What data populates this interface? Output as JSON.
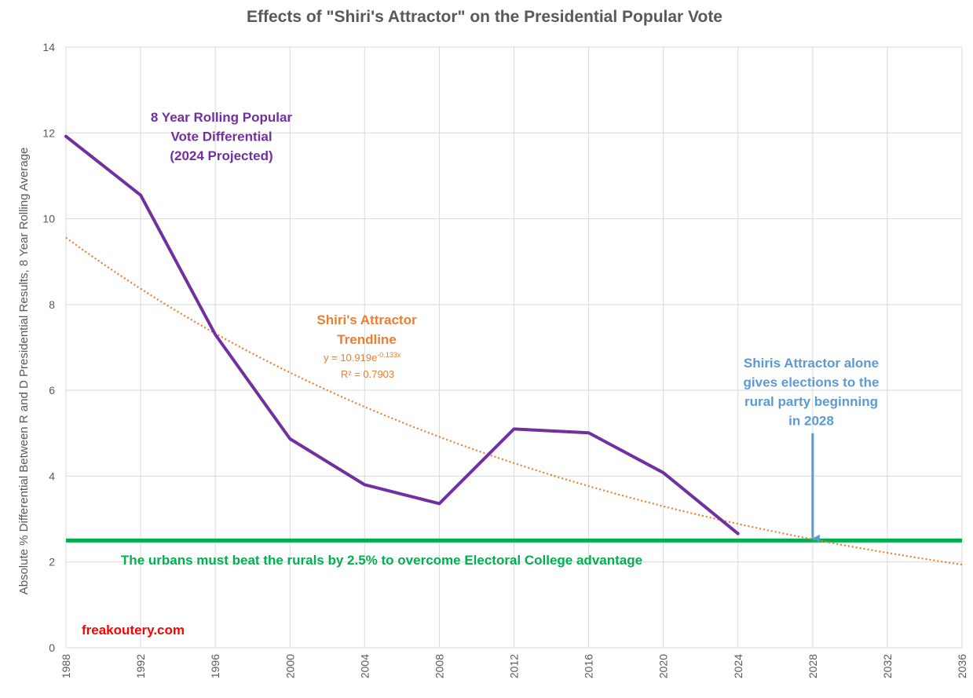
{
  "chart_data": {
    "type": "line",
    "title": "Effects of \"Shiri's Attractor\" on the Presidential Popular Vote",
    "xlabel": "",
    "ylabel": "Absolute % Differential Between R and D Presidential Results, 8 Year Rolling Average",
    "x_ticks": [
      1988,
      1992,
      1996,
      2000,
      2004,
      2008,
      2012,
      2016,
      2020,
      2024,
      2028,
      2032,
      2036
    ],
    "xlim": [
      1988,
      2036
    ],
    "y_ticks": [
      0,
      2,
      4,
      6,
      8,
      10,
      12,
      14
    ],
    "ylim": [
      0,
      14
    ],
    "grid": true,
    "series": [
      {
        "name": "8 Year Rolling Popular Vote Differential (2024 Projected)",
        "color": "#7030A0",
        "x": [
          1988,
          1992,
          1996,
          2000,
          2004,
          2008,
          2012,
          2016,
          2020,
          2024
        ],
        "values": [
          11.92,
          10.55,
          7.3,
          4.87,
          3.8,
          3.36,
          5.1,
          5.01,
          4.08,
          2.66
        ]
      }
    ],
    "trendline": {
      "name": "Shiri's Attractor Trendline",
      "type": "exponential",
      "color": "#ED7D31",
      "a": 10.919,
      "b": -0.133,
      "x_start": 1988,
      "x_end": 2036,
      "x_origin": 1984,
      "x_step": 4
    },
    "threshold": {
      "value": 2.5,
      "color": "#00B050"
    },
    "arrow": {
      "color": "#5B9BD5",
      "x": 2028,
      "y_from": 5.0,
      "y_to": 2.55
    },
    "annotations": {
      "series_label": [
        "8 Year Rolling Popular",
        "Vote Differential",
        "(2024 Projected)"
      ],
      "trend_label": [
        "Shiri's Attractor",
        "Trendline"
      ],
      "trend_equation_prefix": "y = 10.919e",
      "trend_equation_exponent": "-0.133x",
      "trend_r2": "R² = 0.7903",
      "arrow_label": [
        "Shiris Attractor alone",
        "gives elections to the",
        "rural party beginning",
        "in 2028"
      ],
      "threshold_label": "The urbans must beat the rurals by 2.5% to overcome Electoral College advantage",
      "watermark": "freakoutery.com"
    },
    "colors": {
      "watermark": "#FF0000",
      "grid": "#D9D9D9",
      "text": "#595959"
    }
  }
}
